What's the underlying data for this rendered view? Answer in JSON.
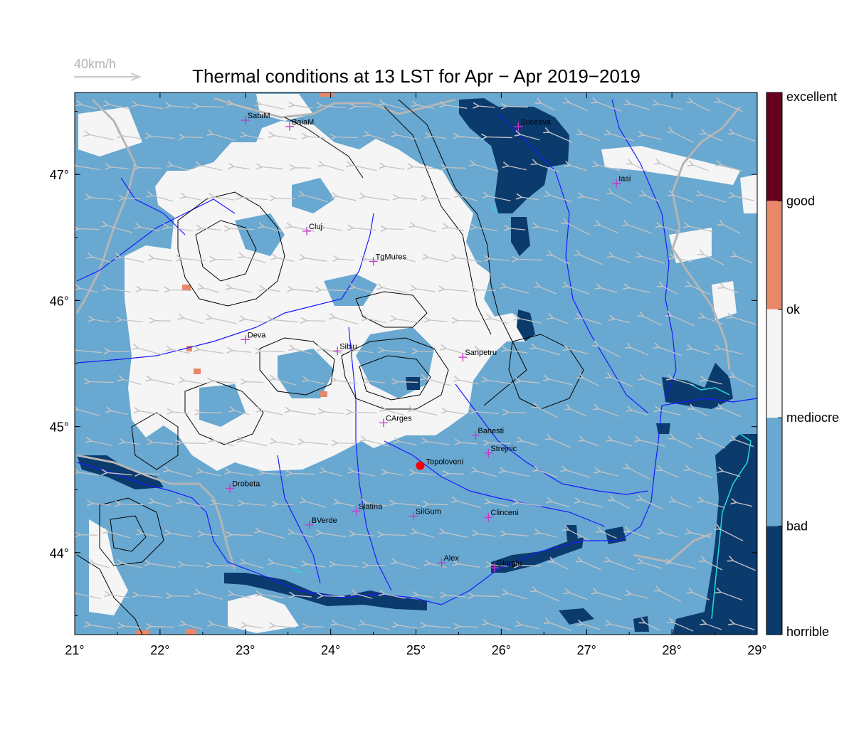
{
  "title": "Thermal conditions at 13 LST for Apr − Apr  2019−2019",
  "wind_reference": {
    "label": "40km/h"
  },
  "axes": {
    "x_ticks": [
      "21°",
      "22°",
      "23°",
      "24°",
      "25°",
      "26°",
      "27°",
      "28°",
      "29°"
    ],
    "y_ticks": [
      "47°",
      "46°",
      "45°",
      "44°"
    ],
    "x_range": [
      21,
      29
    ],
    "y_range": [
      43.35,
      47.65
    ]
  },
  "legend": {
    "labels": [
      "excellent",
      "good",
      "ok",
      "mediocre",
      "bad",
      "horrible"
    ],
    "colors": [
      "#67001f",
      "#e9876a",
      "#f5f5f5",
      "#69a8d0",
      "#0b3a6d"
    ]
  },
  "colors": {
    "bad": "#69a8d0",
    "mediocre": "#f5f5f5",
    "horrible": "#0b3a6d",
    "ok": "#e9876a",
    "river": "#1a1aff",
    "border": "#b0b0b0",
    "city_marker": "#cc33cc",
    "highlight": "#ff0000"
  },
  "cities": [
    {
      "name": "SatuM",
      "lon": 23.0,
      "lat": 47.43
    },
    {
      "name": "BaiaM",
      "lon": 23.52,
      "lat": 47.38
    },
    {
      "name": "Suceava",
      "lon": 26.2,
      "lat": 47.38
    },
    {
      "name": "Iasi",
      "lon": 27.35,
      "lat": 46.93
    },
    {
      "name": "Cluj",
      "lon": 23.72,
      "lat": 46.55
    },
    {
      "name": "TgMures",
      "lon": 24.5,
      "lat": 46.31
    },
    {
      "name": "Deva",
      "lon": 23.0,
      "lat": 45.69
    },
    {
      "name": "Sibiu",
      "lon": 24.08,
      "lat": 45.6
    },
    {
      "name": "Sanpetru",
      "lon": 25.55,
      "lat": 45.55
    },
    {
      "name": "CArges",
      "lon": 24.62,
      "lat": 45.03
    },
    {
      "name": "Banesti",
      "lon": 25.7,
      "lat": 44.93
    },
    {
      "name": "Strejnic",
      "lon": 25.85,
      "lat": 44.79
    },
    {
      "name": "Drobeta",
      "lon": 22.82,
      "lat": 44.51
    },
    {
      "name": "Slatina",
      "lon": 24.3,
      "lat": 44.33
    },
    {
      "name": "SilGum",
      "lon": 24.97,
      "lat": 44.29
    },
    {
      "name": "Clinceni",
      "lon": 25.85,
      "lat": 44.28
    },
    {
      "name": "BVerde",
      "lon": 23.75,
      "lat": 44.22
    },
    {
      "name": "Alex",
      "lon": 25.3,
      "lat": 43.92
    },
    {
      "name": "Giurgiu",
      "lon": 25.92,
      "lat": 43.88
    }
  ],
  "highlight_city": {
    "name": "Topoloveni",
    "lon": 25.05,
    "lat": 44.69
  }
}
